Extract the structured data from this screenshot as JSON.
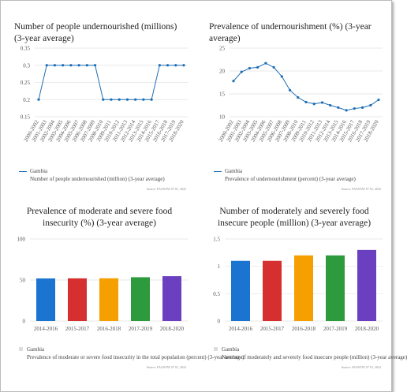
{
  "chart_data": [
    {
      "type": "line",
      "title": "Number of people undernourished (millions) (3-year average)",
      "categories": [
        "2000-2002",
        "2001-2003",
        "2002-2004",
        "2003-2005",
        "2004-2006",
        "2005-2007",
        "2006-2008",
        "2007-2009",
        "2008-2010",
        "2009-2011",
        "2010-2012",
        "2011-2013",
        "2012-2014",
        "2013-2015",
        "2014-2016",
        "2015-2017",
        "2016-2018",
        "2017-2019",
        "2018-2020"
      ],
      "series": [
        {
          "name": "Gambia",
          "color": "#1f6fb5",
          "values": [
            0.2,
            0.3,
            0.3,
            0.3,
            0.3,
            0.3,
            0.3,
            0.3,
            0.2,
            0.2,
            0.2,
            0.2,
            0.2,
            0.2,
            0.2,
            0.3,
            0.3,
            0.3,
            0.3
          ]
        }
      ],
      "legend_text": "Number of people undernourished (million) (3-year average)",
      "source": "Source: FAOSTAT 07 01, 2022",
      "ylim": [
        0.15,
        0.35
      ],
      "yticks": [
        0.15,
        0.2,
        0.25,
        0.3,
        0.35
      ],
      "grid": true
    },
    {
      "type": "line",
      "title": "Prevalence of undernourishment (%) (3-year average)",
      "categories": [
        "2000-2002",
        "2001-2003",
        "2002-2004",
        "2003-2005",
        "2004-2006",
        "2005-2007",
        "2006-2008",
        "2007-2009",
        "2008-2010",
        "2009-2011",
        "2010-2012",
        "2011-2013",
        "2012-2014",
        "2013-2015",
        "2014-2016",
        "2015-2017",
        "2016-2018",
        "2017-2019",
        "2018-2020"
      ],
      "series": [
        {
          "name": "Gambia",
          "color": "#1f6fb5",
          "values": [
            17.8,
            19.8,
            20.6,
            20.8,
            21.7,
            20.8,
            18.8,
            15.8,
            14.2,
            13.2,
            12.8,
            13.1,
            12.5,
            12.0,
            11.4,
            11.8,
            12.0,
            12.5,
            13.7
          ]
        }
      ],
      "legend_text": "Prevalence of undernourishment (percent) (3-year average)",
      "source": "Source: FAOSTAT 07 01, 2022",
      "ylim": [
        10,
        25
      ],
      "yticks": [
        10,
        15,
        20,
        25
      ],
      "grid": true
    },
    {
      "type": "bar",
      "title": "Prevalence of moderate and severe food insecurity (%) (3-year average)",
      "categories": [
        "2014-2016",
        "2015-2017",
        "2016-2018",
        "2017-2019",
        "2018-2020"
      ],
      "series": [
        {
          "name": "Gambia",
          "color": "#dddddd",
          "values": [
            51.9,
            52.0,
            52.1,
            53.4,
            54.7
          ]
        }
      ],
      "colors": [
        "#1b75d0",
        "#d62f2f",
        "#f59f00",
        "#2e9a3e",
        "#6a3fc0"
      ],
      "legend_text": "Prevalence of moderate or severe food insecurity in the total population (percent) (3-year average)",
      "source": "Source: FAOSTAT 07 01, 2022",
      "ylim": [
        0,
        100
      ],
      "yticks": [
        0,
        50,
        100
      ],
      "grid": true
    },
    {
      "type": "bar",
      "title": "Number of moderately and severely food insecure people (million) (3-year average)",
      "categories": [
        "2014-2016",
        "2015-2017",
        "2016-2018",
        "2017-2019",
        "2018-2020"
      ],
      "series": [
        {
          "name": "Gambia",
          "color": "#dddddd",
          "values": [
            1.1,
            1.1,
            1.2,
            1.2,
            1.3
          ]
        }
      ],
      "colors": [
        "#1b75d0",
        "#d62f2f",
        "#f59f00",
        "#2e9a3e",
        "#6a3fc0"
      ],
      "legend_text": "Number of moderately and severely food insecure people (million) (3-year average)",
      "source": "Source: FAOSTAT 07 01, 2022",
      "ylim": [
        0,
        1.5
      ],
      "yticks": [
        0,
        0.5,
        1,
        1.5
      ],
      "grid": true
    }
  ]
}
